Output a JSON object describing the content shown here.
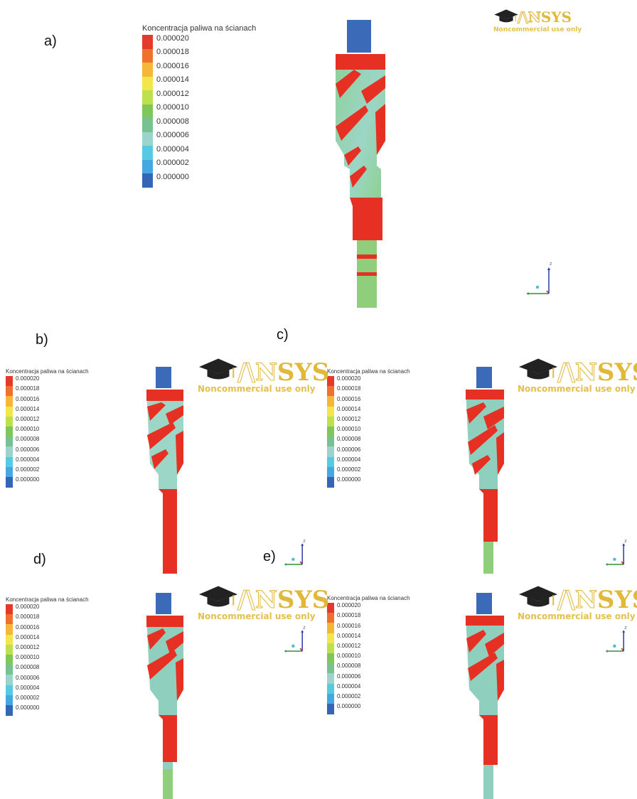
{
  "panel_labels": {
    "a": "a)",
    "b": "b)",
    "c": "c)",
    "d": "d)",
    "e": "e)"
  },
  "legend": {
    "title_a": "Koncentracja paliwa na ścianach",
    "title": "Koncentracja paliwa na ścianach",
    "ticks": [
      "0.000020",
      "0.000018",
      "0.000016",
      "0.000014",
      "0.000012",
      "0.000010",
      "0.000008",
      "0.000006",
      "0.000004",
      "0.000002",
      "0.000000"
    ],
    "colors": [
      "#e53a2b",
      "#f0712d",
      "#f6b638",
      "#f4e64a",
      "#bfe04d",
      "#7fc75a",
      "#76c291",
      "#9ad4cc",
      "#56c9e3",
      "#45a8e0",
      "#3366b4"
    ]
  },
  "logo": {
    "word_part1": "/\\N",
    "word_part2": "SYS",
    "subtitle": "Noncommercial use only"
  },
  "axes": {
    "z_label": "z"
  },
  "colors": {
    "red": "#e53023",
    "green": "#8fcf7c",
    "teal": "#8fcfbd",
    "blue": "#3b6ab8",
    "cyan": "#66c6e0",
    "gold": "#e0b83a"
  }
}
